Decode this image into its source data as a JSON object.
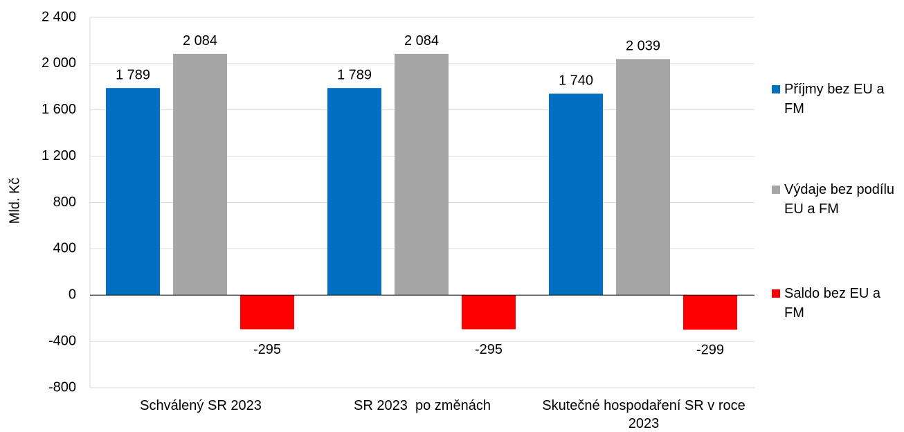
{
  "chart_data": {
    "type": "bar",
    "y_label": "Mld. Kč",
    "categories": [
      "Schválený SR 2023",
      "SR 2023  po změnách",
      "Skutečné hospodaření SR v roce 2023"
    ],
    "series": [
      {
        "name": "Příjmy bez EU a FM",
        "color": "#0070c0",
        "values": [
          1789,
          1789,
          1740
        ],
        "value_labels": [
          "1 789",
          "1 789",
          "1 740"
        ]
      },
      {
        "name": "Výdaje bez podílu EU a FM",
        "color": "#a6a6a6",
        "values": [
          2084,
          2084,
          2039
        ],
        "value_labels": [
          "2 084",
          "2 084",
          "2 039"
        ]
      },
      {
        "name": "Saldo bez EU a FM",
        "color": "#ff0000",
        "values": [
          -295,
          -295,
          -299
        ]
      }
    ],
    "ylim": [
      -800,
      2400
    ],
    "yticks": [
      -800,
      -400,
      0,
      400,
      800,
      {
        "value": 1200,
        "label": "1 200"
      },
      {
        "value": 1600,
        "label": "1 600"
      },
      {
        "value": 2000,
        "label": "2 000"
      },
      {
        "value": 2400,
        "label": "2 400"
      }
    ],
    "grid": true,
    "legend": "right"
  }
}
